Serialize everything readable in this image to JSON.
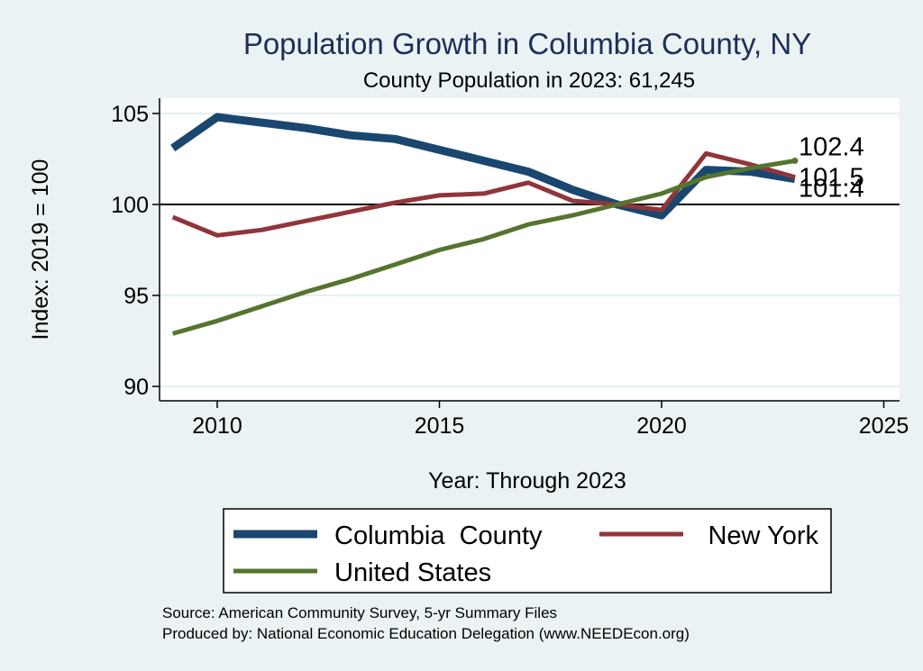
{
  "chart_data": {
    "type": "line",
    "title": "Population Growth in Columbia County, NY",
    "subtitle": "County Population in 2023: 61,245",
    "xlabel": "Year: Through 2023",
    "ylabel": "Index: 2019 = 100",
    "xlim": [
      2009,
      2025
    ],
    "ylim": [
      90,
      106
    ],
    "xticks": [
      2010,
      2015,
      2020,
      2025
    ],
    "yticks": [
      90,
      95,
      100,
      105
    ],
    "reference_line": 100,
    "grid": true,
    "legend_position": "bottom",
    "series": [
      {
        "name": "Columbia  County",
        "color": "#1a476f",
        "x": [
          2009,
          2010,
          2011,
          2012,
          2013,
          2014,
          2015,
          2016,
          2017,
          2018,
          2019,
          2020,
          2021,
          2022,
          2023
        ],
        "y": [
          103.1,
          104.8,
          104.5,
          104.2,
          103.8,
          103.6,
          103.0,
          102.4,
          101.8,
          100.8,
          100.0,
          99.4,
          101.9,
          101.8,
          101.4
        ],
        "end_label": "101.4"
      },
      {
        "name": "New York",
        "color": "#90353b",
        "x": [
          2009,
          2010,
          2011,
          2012,
          2013,
          2014,
          2015,
          2016,
          2017,
          2018,
          2019,
          2020,
          2021,
          2022,
          2023
        ],
        "y": [
          99.3,
          98.3,
          98.6,
          99.1,
          99.6,
          100.1,
          100.5,
          100.6,
          101.2,
          100.2,
          100.0,
          99.7,
          102.8,
          102.2,
          101.5
        ],
        "end_label": "101.5"
      },
      {
        "name": "United States",
        "color": "#55752f",
        "x": [
          2009,
          2010,
          2011,
          2012,
          2013,
          2014,
          2015,
          2016,
          2017,
          2018,
          2019,
          2020,
          2021,
          2022,
          2023
        ],
        "y": [
          92.9,
          93.6,
          94.4,
          95.2,
          95.9,
          96.7,
          97.5,
          98.1,
          98.9,
          99.4,
          100.0,
          100.6,
          101.5,
          102.0,
          102.4
        ],
        "end_label": "102.4"
      }
    ]
  },
  "source": {
    "line1": "Source: American Community Survey, 5-yr Summary Files",
    "line2": "Produced by: National Economic Education Delegation (www.NEEDEcon.org)"
  }
}
